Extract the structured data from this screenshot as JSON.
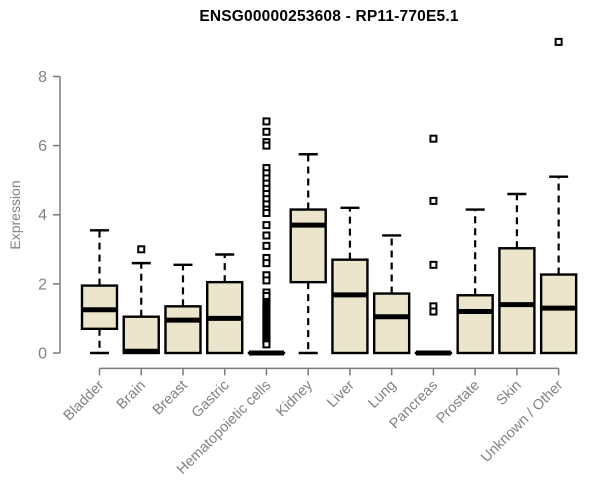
{
  "chart_data": {
    "type": "boxplot",
    "title": "ENSG00000253608 - RP11-770E5.1",
    "ylabel": "Expression",
    "xlabel": "",
    "ylim": [
      0,
      8
    ],
    "yticks": [
      0,
      2,
      4,
      6,
      8
    ],
    "grid": false,
    "legend": null,
    "categories": [
      "Bladder",
      "Brain",
      "Breast",
      "Gastric",
      "Hematopoietic cells",
      "Kidney",
      "Liver",
      "Lung",
      "Pancreas",
      "Prostate",
      "Skin",
      "Unknown / Other"
    ],
    "series": [
      {
        "name": "Bladder",
        "whislo": 0,
        "q1": 0.7,
        "med": 1.25,
        "q3": 1.95,
        "whishi": 3.55,
        "outliers": []
      },
      {
        "name": "Brain",
        "whislo": 0,
        "q1": 0,
        "med": 0.05,
        "q3": 1.05,
        "whishi": 2.6,
        "outliers": [
          3.0
        ]
      },
      {
        "name": "Breast",
        "whislo": 0,
        "q1": 0,
        "med": 0.95,
        "q3": 1.35,
        "whishi": 2.55,
        "outliers": []
      },
      {
        "name": "Gastric",
        "whislo": 0,
        "q1": 0,
        "med": 1.0,
        "q3": 2.05,
        "whishi": 2.85,
        "outliers": []
      },
      {
        "name": "Hematopoietic cells",
        "whislo": 0,
        "q1": 0,
        "med": 0,
        "q3": 0,
        "whishi": 0,
        "outliers": [
          6.7,
          6.4,
          6.1,
          6.0,
          5.35,
          5.2,
          5.05,
          4.9,
          4.75,
          4.6,
          4.45,
          4.3,
          4.15,
          4.05,
          3.7,
          3.4,
          3.1,
          2.75,
          2.6,
          2.25,
          2.1,
          1.75,
          1.65,
          1.45,
          1.4,
          1.35,
          1.3,
          1.25,
          1.2,
          1.15,
          1.1,
          1.05,
          1.0,
          0.95,
          0.9,
          0.85,
          0.8,
          0.75,
          0.7,
          0.65,
          0.6,
          0.55,
          0.5,
          0.45,
          0.4,
          0.35,
          0.3,
          0.25
        ]
      },
      {
        "name": "Kidney",
        "whislo": 0,
        "q1": 2.05,
        "med": 3.7,
        "q3": 4.15,
        "whishi": 5.75,
        "outliers": []
      },
      {
        "name": "Liver",
        "whislo": 0,
        "q1": 0,
        "med": 1.68,
        "q3": 2.7,
        "whishi": 4.2,
        "outliers": []
      },
      {
        "name": "Lung",
        "whislo": 0,
        "q1": 0,
        "med": 1.05,
        "q3": 1.72,
        "whishi": 3.4,
        "outliers": []
      },
      {
        "name": "Pancreas",
        "whislo": 0,
        "q1": 0,
        "med": 0,
        "q3": 0,
        "whishi": 0,
        "outliers": [
          6.2,
          4.4,
          2.55,
          1.35,
          1.2
        ]
      },
      {
        "name": "Prostate",
        "whislo": 0,
        "q1": 0,
        "med": 1.2,
        "q3": 1.67,
        "whishi": 4.15,
        "outliers": []
      },
      {
        "name": "Skin",
        "whislo": 0,
        "q1": 0,
        "med": 1.4,
        "q3": 3.03,
        "whishi": 4.6,
        "outliers": []
      },
      {
        "name": "Unknown / Other",
        "whislo": 0,
        "q1": 0,
        "med": 1.3,
        "q3": 2.27,
        "whishi": 5.1,
        "outliers": [
          9.0
        ]
      }
    ],
    "colors": {
      "box_fill": "#ebe5cb",
      "box_border": "#000000",
      "median": "#000000",
      "whisker": "#000000",
      "outlier": "#000000",
      "axis": "#7b7b7b",
      "tick_label": "#828282",
      "title": "#000000"
    }
  }
}
